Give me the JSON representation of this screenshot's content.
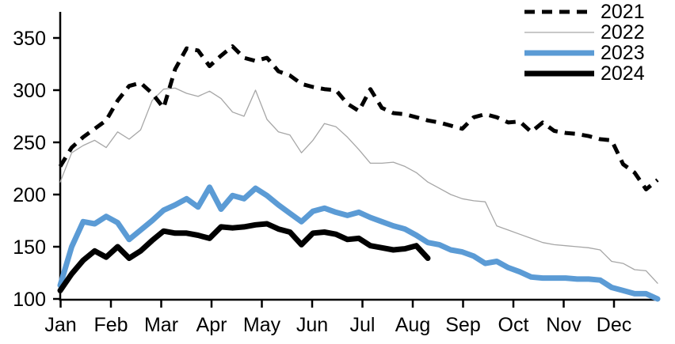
{
  "chart_data": {
    "type": "line",
    "title": "",
    "xlabel": "",
    "ylabel": "",
    "x_unit": "weekly points, January through December",
    "months": [
      "Jan",
      "Feb",
      "Mar",
      "Apr",
      "May",
      "Jun",
      "Jul",
      "Aug",
      "Sep",
      "Oct",
      "Nov",
      "Dec"
    ],
    "y_ticks": [
      100,
      150,
      200,
      250,
      300,
      350
    ],
    "ylim": [
      100,
      360
    ],
    "grid": false,
    "legend_position": "top-right",
    "background": "#FFFFFF",
    "axis_color": "#000000",
    "series": [
      {
        "name": "2021",
        "color": "#000000",
        "style": "dashed",
        "width": 5,
        "values": [
          227,
          245,
          255,
          263,
          271,
          290,
          304,
          307,
          297,
          283,
          320,
          340,
          338,
          323,
          333,
          342,
          331,
          328,
          331,
          318,
          314,
          306,
          303,
          301,
          300,
          287,
          280,
          301,
          283,
          278,
          277,
          274,
          271,
          269,
          266,
          263,
          274,
          277,
          274,
          269,
          270,
          260,
          269,
          261,
          259,
          258,
          256,
          253,
          252,
          229,
          221,
          205,
          214
        ]
      },
      {
        "name": "2022",
        "color": "#A6A6A6",
        "style": "solid",
        "width": 1.3,
        "values": [
          212,
          240,
          247,
          252,
          245,
          260,
          253,
          262,
          290,
          301,
          302,
          297,
          294,
          299,
          292,
          279,
          275,
          300,
          272,
          260,
          257,
          240,
          252,
          268,
          265,
          255,
          243,
          230,
          230,
          231,
          227,
          221,
          212,
          206,
          200,
          196,
          194,
          193,
          170,
          166,
          162,
          158,
          154,
          152,
          151,
          150,
          149,
          147,
          136,
          134,
          128,
          127,
          115
        ]
      },
      {
        "name": "2023",
        "color": "#5B9BD5",
        "style": "solid",
        "width": 7,
        "values": [
          113,
          150,
          174,
          172,
          179,
          173,
          157,
          166,
          175,
          185,
          190,
          196,
          188,
          207,
          186,
          199,
          196,
          206,
          199,
          190,
          182,
          174,
          184,
          187,
          183,
          180,
          183,
          178,
          174,
          170,
          167,
          161,
          154,
          152,
          147,
          145,
          141,
          134,
          136,
          130,
          126,
          121,
          120,
          120,
          120,
          119,
          119,
          118,
          111,
          108,
          105,
          105,
          100
        ]
      },
      {
        "name": "2024",
        "color": "#000000",
        "style": "solid",
        "width": 7,
        "values": [
          108,
          124,
          137,
          146,
          140,
          150,
          139,
          146,
          156,
          165,
          163,
          163,
          161,
          158,
          169,
          168,
          169,
          171,
          172,
          167,
          164,
          152,
          163,
          164,
          162,
          157,
          158,
          151,
          149,
          147,
          148,
          151,
          139
        ]
      }
    ]
  }
}
